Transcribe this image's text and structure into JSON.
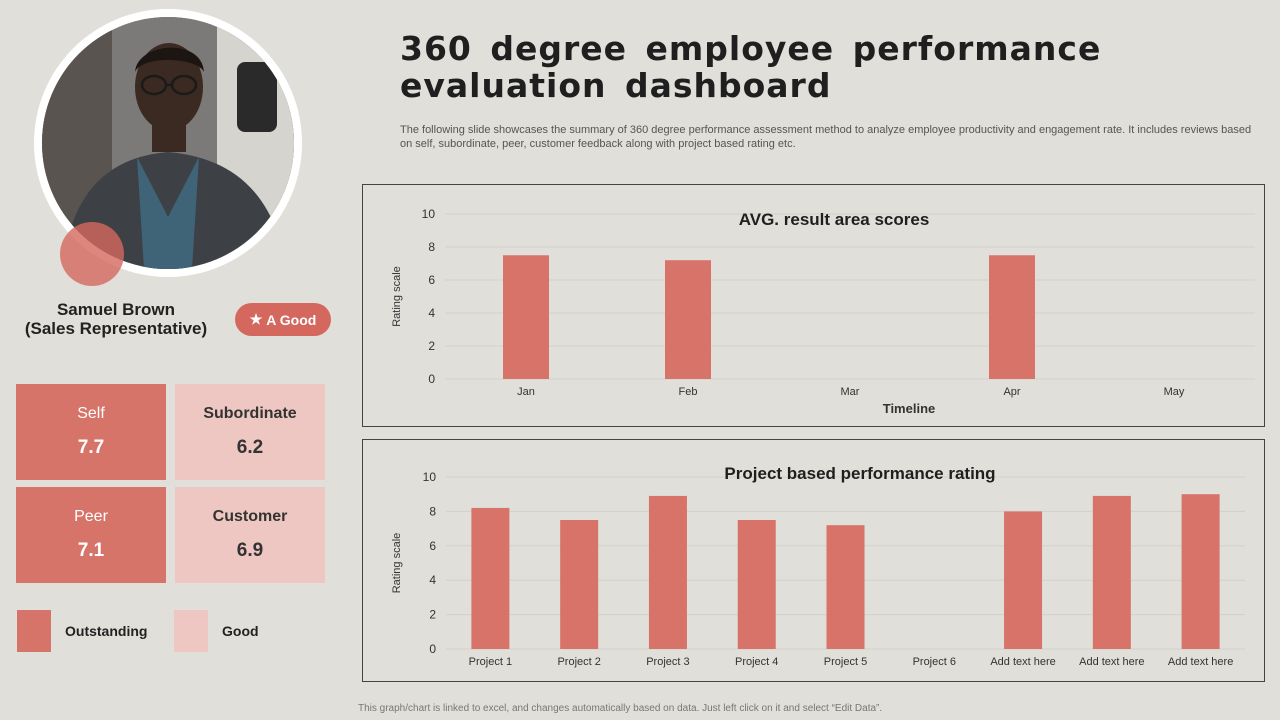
{
  "header": {
    "title": "360 degree employee performance evaluation dashboard",
    "description": "The following slide showcases the summary of 360 degree performance assessment method to analyze employee productivity and engagement rate. It includes reviews based on self, subordinate, peer, customer feedback along with project based rating etc."
  },
  "profile": {
    "name": "Samuel Brown",
    "role": "(Sales Representative)",
    "badge_icon": "star-icon",
    "badge_label": "A Good"
  },
  "scores": {
    "self": {
      "label": "Self",
      "value": "7.7"
    },
    "subordinate": {
      "label": "Subordinate",
      "value": "6.2"
    },
    "peer": {
      "label": "Peer",
      "value": "7.1"
    },
    "customer": {
      "label": "Customer",
      "value": "6.9"
    }
  },
  "legend": {
    "outstanding": {
      "label": "Outstanding",
      "color": "#d7746a"
    },
    "good": {
      "label": "Good",
      "color": "#efc7c2"
    }
  },
  "footnote": "This graph/chart is linked to excel, and changes automatically based on data. Just left click on it and select “Edit Data”.",
  "colors": {
    "bar": "#d8736a",
    "background": "#e0dfd9"
  },
  "chart_data": [
    {
      "type": "bar",
      "title": "AVG. result area scores",
      "xlabel": "Timeline",
      "ylabel": "Rating scale",
      "categories": [
        "Jan",
        "Feb",
        "Mar",
        "Apr",
        "May"
      ],
      "values": [
        7.5,
        7.2,
        null,
        7.5,
        null
      ],
      "yticks": [
        "0",
        "2",
        "4",
        "6",
        "8",
        "10"
      ],
      "ylim": [
        0,
        10
      ],
      "grid": true
    },
    {
      "type": "bar",
      "title": "Project based performance rating",
      "xlabel": "",
      "ylabel": "Rating scale",
      "categories": [
        "Project 1",
        "Project 2",
        "Project 3",
        "Project 4",
        "Project 5",
        "Project 6",
        "Add text here",
        "Add text here",
        "Add text here"
      ],
      "values": [
        8.2,
        7.5,
        8.9,
        7.5,
        7.2,
        null,
        8.0,
        8.9,
        9.0
      ],
      "yticks": [
        "0",
        "2",
        "4",
        "6",
        "8",
        "10"
      ],
      "ylim": [
        0,
        10
      ],
      "grid": true
    }
  ]
}
